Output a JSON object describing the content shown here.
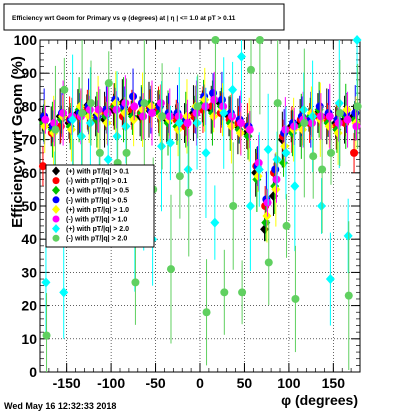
{
  "title": "Efficiency wrt Geom for Primary vs φ (degrees) at | η | <= 1.0 at pT > 0.11",
  "timestamp": "Wed May 16 12:32:33 2018",
  "chart_data": {
    "type": "scatter",
    "title": "Efficiency wrt Geom for Primary vs φ (degrees) at | η | <= 1.0 at pT > 0.11",
    "xlabel": "φ (degrees)",
    "ylabel": "Efficiency wrt Geom (%)",
    "xlim": [
      -180,
      180
    ],
    "ylim": [
      0,
      100
    ],
    "xticks": [
      -150,
      -100,
      -50,
      0,
      50,
      100,
      150
    ],
    "yticks": [
      0,
      10,
      20,
      30,
      40,
      50,
      60,
      70,
      80,
      90,
      100
    ],
    "grid": true,
    "legend_position": "left-middle",
    "series": [
      {
        "name": "(+) with pT/|q| > 0.1",
        "color": "#000000",
        "x": [
          -175,
          -165,
          -155,
          -145,
          -135,
          -125,
          -115,
          -105,
          -95,
          -85,
          -75,
          -65,
          -55,
          -45,
          -35,
          -25,
          -15,
          -5,
          5,
          15,
          25,
          35,
          45,
          55,
          65,
          75,
          85,
          95,
          105,
          115,
          125,
          135,
          145,
          155,
          165,
          175
        ],
        "y": [
          76,
          74,
          77,
          75,
          78,
          80,
          77,
          76,
          79,
          81,
          78,
          77,
          79,
          80,
          76,
          77,
          75,
          78,
          80,
          79,
          81,
          77,
          74,
          72,
          60,
          43,
          53,
          70,
          74,
          75,
          76,
          78,
          77,
          75,
          76,
          77
        ]
      },
      {
        "name": "(-) with pT/|q| > 0.1",
        "color": "#ff0000",
        "x": [
          -175,
          -165,
          -155,
          -145,
          -135,
          -125,
          -115,
          -105,
          -95,
          -85,
          -75,
          -65,
          -55,
          -45,
          -35,
          -25,
          -15,
          -5,
          5,
          15,
          25,
          35,
          45,
          55,
          65,
          75,
          85,
          95,
          105,
          115,
          125,
          135,
          145,
          155,
          165,
          175
        ],
        "y": [
          62,
          72,
          74,
          76,
          77,
          79,
          76,
          78,
          80,
          77,
          79,
          78,
          80,
          79,
          77,
          76,
          74,
          77,
          79,
          80,
          78,
          76,
          75,
          74,
          62,
          50,
          60,
          71,
          73,
          76,
          75,
          77,
          76,
          74,
          75,
          66
        ]
      },
      {
        "name": "(+) with pT/|q| > 0.5",
        "color": "#00c000",
        "x": [
          -175,
          -165,
          -155,
          -145,
          -135,
          -125,
          -115,
          -105,
          -95,
          -85,
          -75,
          -65,
          -55,
          -45,
          -35,
          -25,
          -15,
          -5,
          5,
          15,
          25,
          35,
          45,
          55,
          65,
          75,
          85,
          95,
          105,
          115,
          125,
          135,
          145,
          155,
          165,
          175
        ],
        "y": [
          75,
          73,
          76,
          74,
          79,
          78,
          76,
          77,
          80,
          79,
          77,
          78,
          81,
          78,
          75,
          74,
          76,
          79,
          81,
          78,
          80,
          75,
          73,
          71,
          58,
          45,
          56,
          63,
          72,
          74,
          77,
          79,
          75,
          73,
          77,
          76
        ]
      },
      {
        "name": "(-) with pT/|q| > 0.5",
        "color": "#0000ff",
        "x": [
          -175,
          -165,
          -155,
          -145,
          -135,
          -125,
          -115,
          -105,
          -95,
          -85,
          -75,
          -65,
          -55,
          -45,
          -35,
          -25,
          -15,
          -5,
          5,
          15,
          25,
          35,
          45,
          55,
          65,
          75,
          85,
          95,
          105,
          115,
          125,
          135,
          145,
          155,
          165,
          175
        ],
        "y": [
          77,
          74,
          78,
          76,
          78,
          80,
          77,
          79,
          82,
          80,
          83,
          81,
          79,
          80,
          78,
          78,
          76,
          79,
          83,
          84,
          82,
          78,
          76,
          74,
          62,
          52,
          61,
          72,
          75,
          77,
          76,
          80,
          78,
          76,
          78,
          78
        ]
      },
      {
        "name": "(+) with pT/|q| > 1.0",
        "color": "#ffff00",
        "x": [
          -175,
          -165,
          -155,
          -145,
          -135,
          -125,
          -115,
          -105,
          -95,
          -85,
          -75,
          -65,
          -55,
          -45,
          -35,
          -25,
          -15,
          -5,
          5,
          15,
          25,
          35,
          45,
          55,
          65,
          75,
          85,
          95,
          105,
          115,
          125,
          135,
          145,
          155,
          165,
          175
        ],
        "y": [
          74,
          72,
          77,
          73,
          80,
          77,
          78,
          75,
          81,
          78,
          76,
          79,
          80,
          77,
          76,
          73,
          77,
          80,
          82,
          77,
          79,
          74,
          72,
          73,
          59,
          47,
          55,
          68,
          73,
          73,
          78,
          76,
          74,
          72,
          79,
          75
        ]
      },
      {
        "name": "(-) with pT/|q| > 1.0",
        "color": "#ff00ff",
        "x": [
          -175,
          -165,
          -155,
          -145,
          -135,
          -125,
          -115,
          -105,
          -95,
          -85,
          -75,
          -65,
          -55,
          -45,
          -35,
          -25,
          -15,
          -5,
          5,
          15,
          25,
          35,
          45,
          55,
          65,
          75,
          85,
          95,
          105,
          115,
          125,
          135,
          145,
          155,
          165,
          175
        ],
        "y": [
          76,
          75,
          78,
          77,
          77,
          79,
          79,
          78,
          79,
          81,
          80,
          77,
          78,
          81,
          77,
          77,
          75,
          78,
          80,
          82,
          80,
          77,
          75,
          73,
          63,
          51,
          58,
          73,
          74,
          76,
          75,
          77,
          77,
          75,
          76,
          74
        ]
      },
      {
        "name": "(+) with pT/|q| > 2.0",
        "color": "#00ffff",
        "x": [
          -175,
          -165,
          -155,
          -145,
          -135,
          -125,
          -115,
          -105,
          -95,
          -85,
          -75,
          -65,
          -55,
          -45,
          -35,
          -25,
          -15,
          -5,
          5,
          15,
          25,
          35,
          45,
          55,
          65,
          75,
          85,
          95,
          105,
          115,
          125,
          135,
          145,
          155,
          165,
          175
        ],
        "y": [
          27,
          58,
          24,
          76,
          71,
          75,
          58,
          64,
          71,
          74,
          41,
          45,
          40,
          68,
          69,
          75,
          61,
          75,
          66,
          45,
          78,
          85,
          95,
          50,
          61,
          67,
          64,
          66,
          56,
          79,
          77,
          50,
          28,
          81,
          41,
          100
        ]
      },
      {
        "name": "(-) with pT/|q| > 2.0",
        "color": "#60d060",
        "x": [
          -175,
          -165,
          -155,
          -145,
          -135,
          -125,
          -115,
          -105,
          -95,
          -85,
          -75,
          -65,
          -55,
          -45,
          -35,
          -25,
          -15,
          -5,
          5,
          15,
          25,
          35,
          45,
          55,
          65,
          75,
          85,
          95,
          105,
          115,
          125,
          135,
          145,
          155,
          165,
          175
        ],
        "y": [
          11,
          73,
          85,
          54,
          78,
          81,
          66,
          87,
          63,
          66,
          27,
          81,
          55,
          77,
          31,
          59,
          54,
          80,
          18,
          100,
          24,
          50,
          24,
          91,
          100,
          33,
          81,
          44,
          22,
          75,
          65,
          61,
          66,
          78,
          23,
          80
        ]
      }
    ]
  }
}
